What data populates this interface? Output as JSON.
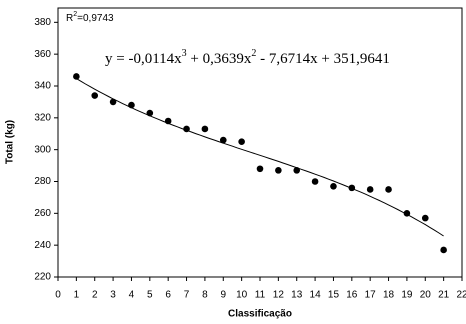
{
  "chart_data": {
    "type": "scatter",
    "xlabel": "Classificação",
    "ylabel": "Total (kg)",
    "x": [
      1,
      2,
      3,
      4,
      5,
      6,
      7,
      8,
      9,
      10,
      11,
      12,
      13,
      14,
      15,
      16,
      17,
      18,
      19,
      20,
      21
    ],
    "series": [
      {
        "color": "#000000",
        "values": [
          346,
          334,
          330,
          328,
          323,
          318,
          313,
          313,
          306,
          305,
          288,
          287,
          287,
          280,
          277,
          276,
          275,
          275,
          260,
          257,
          237
        ]
      }
    ],
    "xlim": [
      0,
      22
    ],
    "xticks": [
      0,
      1,
      2,
      3,
      4,
      5,
      6,
      7,
      8,
      9,
      10,
      11,
      12,
      13,
      14,
      15,
      16,
      17,
      18,
      19,
      20,
      21,
      22
    ],
    "ylim": [
      220,
      389
    ],
    "yticks": [
      220,
      240,
      260,
      280,
      300,
      320,
      340,
      360,
      380
    ],
    "trendline": {
      "color": "#000000",
      "prefix": "y = ",
      "terms": [
        {
          "value": -0.0114,
          "label": "-0,0114x",
          "exponent": 3
        },
        {
          "value": 0.3639,
          "label": "+ 0,3639x",
          "exponent": 2
        },
        {
          "value": -7.6714,
          "label": "- 7,6714x"
        },
        {
          "value": 351.9641,
          "label": "+ 351,9641"
        }
      ]
    },
    "r_squared": {
      "prefix": "R",
      "exponent": 2,
      "label": "=0,9743"
    }
  }
}
